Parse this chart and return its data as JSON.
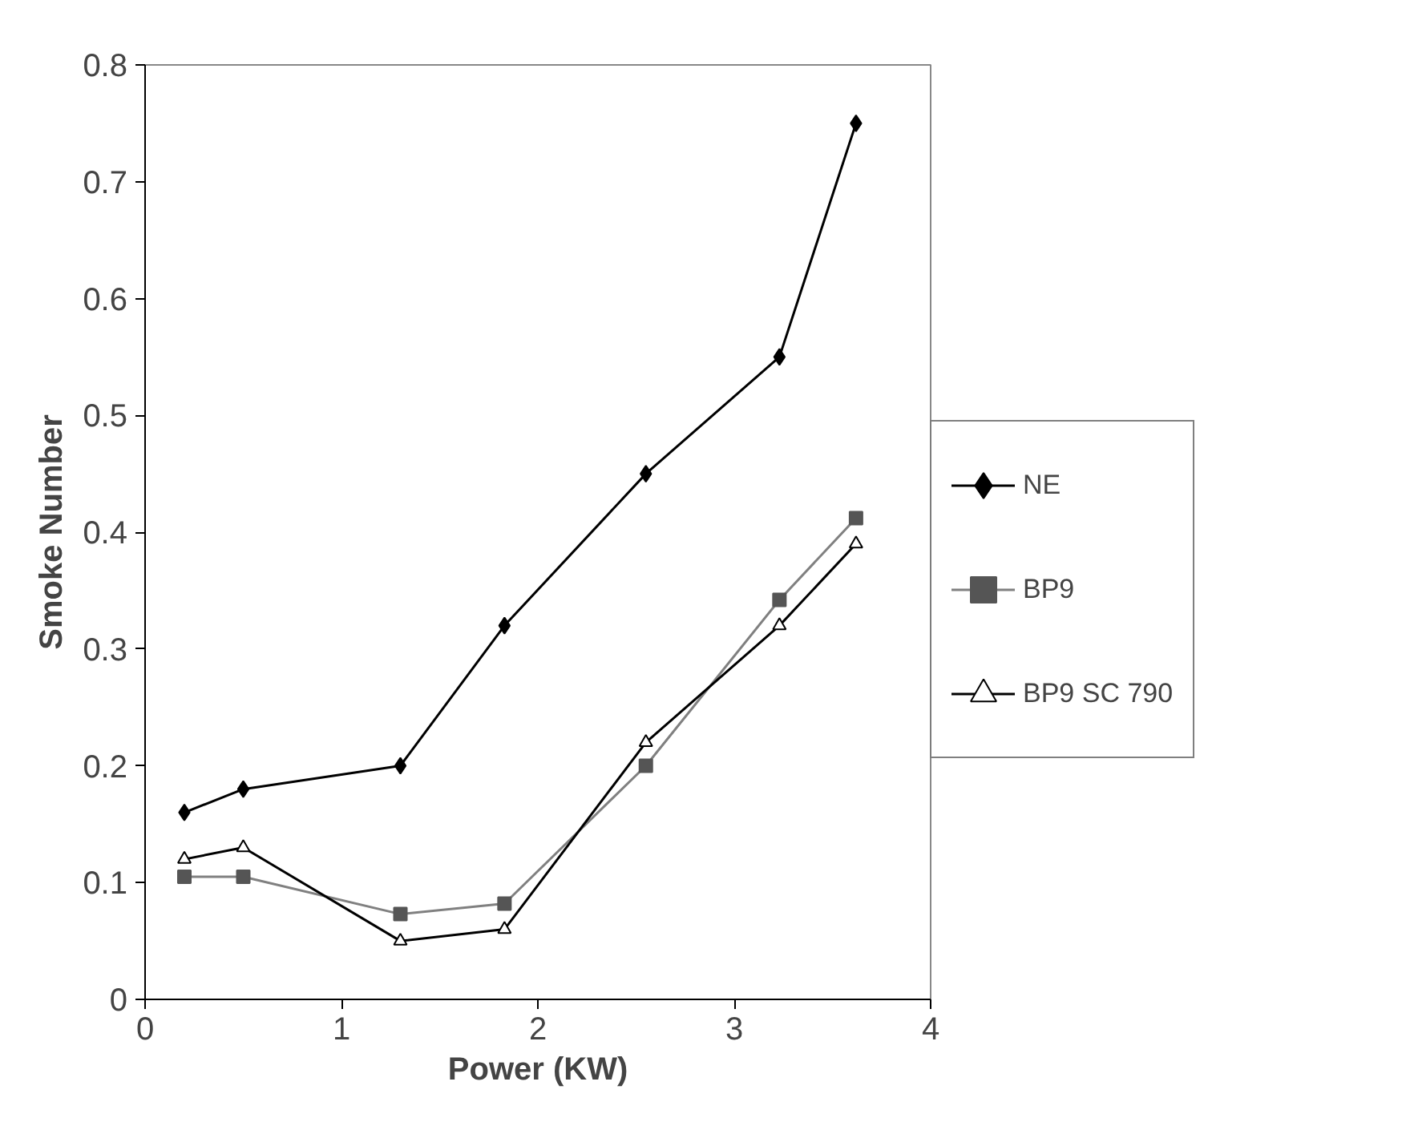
{
  "chart_data": {
    "type": "line",
    "xlabel": "Power (KW)",
    "ylabel": "Smoke Number",
    "x": [
      0.2,
      0.5,
      1.3,
      1.83,
      2.55,
      3.23,
      3.62
    ],
    "series": [
      {
        "name": "NE",
        "color": "#000000",
        "marker": "diamond",
        "values": [
          0.16,
          0.18,
          0.2,
          0.32,
          0.45,
          0.55,
          0.75
        ]
      },
      {
        "name": "BP9",
        "color": "#808080",
        "marker": "square",
        "values": [
          0.105,
          0.105,
          0.073,
          0.082,
          0.2,
          0.342,
          0.412
        ]
      },
      {
        "name": "BP9 SC 790",
        "color": "#000000",
        "marker": "triangle",
        "values": [
          0.12,
          0.13,
          0.05,
          0.06,
          0.22,
          0.32,
          0.39
        ]
      }
    ],
    "xlim": [
      0,
      4
    ],
    "xticks": [
      0,
      1,
      2,
      3,
      4
    ],
    "ylim": [
      0,
      0.8
    ],
    "yticks": [
      0,
      0.1,
      0.2,
      0.3,
      0.4,
      0.5,
      0.6,
      0.7,
      0.8
    ],
    "grid": false,
    "legend": "right",
    "line_style": "solid"
  }
}
